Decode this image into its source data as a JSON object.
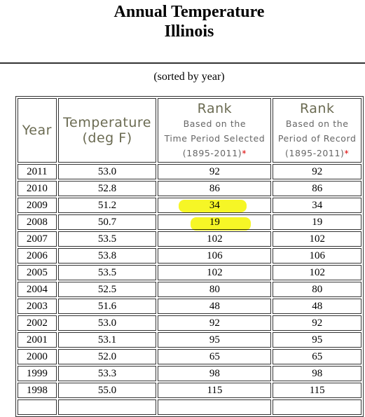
{
  "header": {
    "title_line1": "Annual Temperature",
    "title_line2": "Illinois",
    "subtitle": "(sorted by year)"
  },
  "table": {
    "headers": [
      {
        "title": "Year"
      },
      {
        "title": "Temperature",
        "unit": "(deg F)"
      },
      {
        "title": "Rank",
        "lines": [
          "Based on the",
          "Time Period Selected",
          "(1895-2011)"
        ],
        "note": "*"
      },
      {
        "title": "Rank",
        "lines": [
          "Based on the",
          "Period of Record",
          "(1895-2011)"
        ],
        "note": "*"
      }
    ],
    "rows": [
      [
        "2011",
        "53.0",
        "92",
        "92"
      ],
      [
        "2010",
        "52.8",
        "86",
        "86"
      ],
      [
        "2009",
        "51.2",
        "34",
        "34"
      ],
      [
        "2008",
        "50.7",
        "19",
        "19"
      ],
      [
        "2007",
        "53.5",
        "102",
        "102"
      ],
      [
        "2006",
        "53.8",
        "106",
        "106"
      ],
      [
        "2005",
        "53.5",
        "102",
        "102"
      ],
      [
        "2004",
        "52.5",
        "80",
        "80"
      ],
      [
        "2003",
        "51.6",
        "48",
        "48"
      ],
      [
        "2002",
        "53.0",
        "92",
        "92"
      ],
      [
        "2001",
        "53.1",
        "95",
        "95"
      ],
      [
        "2000",
        "52.0",
        "65",
        "65"
      ],
      [
        "1999",
        "53.3",
        "98",
        "98"
      ],
      [
        "1998",
        "55.0",
        "115",
        "115"
      ]
    ]
  }
}
